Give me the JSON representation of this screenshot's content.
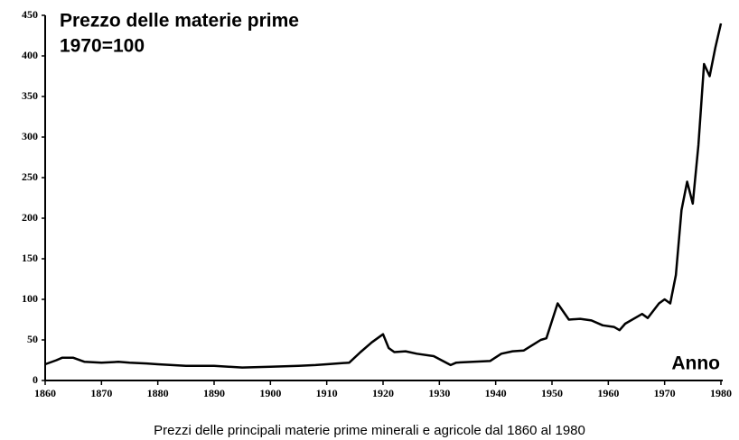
{
  "chart_data": {
    "type": "line",
    "title": "Prezzo delle materie prime",
    "subtitle": "1970=100",
    "x_label": "Anno",
    "caption": "Prezzi delle principali materie prime minerali e agricole dal 1860 al 1980",
    "x": [
      1860,
      1862,
      1863,
      1865,
      1867,
      1870,
      1873,
      1875,
      1878,
      1880,
      1885,
      1890,
      1895,
      1900,
      1905,
      1908,
      1910,
      1914,
      1916,
      1918,
      1920,
      1921,
      1922,
      1924,
      1926,
      1929,
      1932,
      1933,
      1936,
      1939,
      1941,
      1943,
      1945,
      1948,
      1949,
      1951,
      1953,
      1955,
      1957,
      1959,
      1961,
      1962,
      1963,
      1965,
      1966,
      1967,
      1969,
      1970,
      1971,
      1972,
      1973,
      1974,
      1975,
      1976,
      1977,
      1978,
      1979,
      1980
    ],
    "series": [
      {
        "name": "Prezzo",
        "color": "#000000",
        "values": [
          20,
          25,
          28,
          28,
          23,
          22,
          23,
          22,
          21,
          20,
          18,
          18,
          16,
          17,
          18,
          19,
          20,
          22,
          35,
          47,
          57,
          40,
          35,
          36,
          33,
          30,
          19,
          22,
          23,
          24,
          33,
          36,
          37,
          50,
          52,
          95,
          75,
          76,
          74,
          68,
          66,
          62,
          70,
          78,
          82,
          77,
          95,
          100,
          95,
          130,
          210,
          245,
          218,
          290,
          390,
          375,
          410,
          440
        ]
      }
    ],
    "xlim": [
      1860,
      1980
    ],
    "xticks": [
      1860,
      1870,
      1880,
      1890,
      1900,
      1910,
      1920,
      1930,
      1940,
      1950,
      1960,
      1970,
      1980
    ],
    "ylim": [
      0,
      450
    ],
    "yticks": [
      0,
      50,
      100,
      150,
      200,
      250,
      300,
      350,
      400,
      450
    ],
    "grid": false
  }
}
